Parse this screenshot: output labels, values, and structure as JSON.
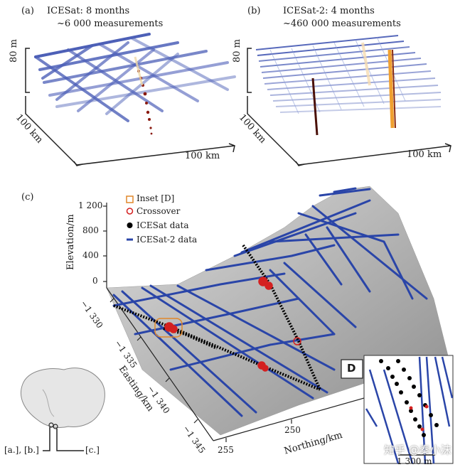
{
  "panel_a": {
    "label": "(a)",
    "title_line1": "ICESat: 8 months",
    "title_line2": "~6 000 measurements",
    "vertical_scale": "80 m",
    "depth_scale": "100 km",
    "width_scale": "100 km"
  },
  "panel_b": {
    "label": "(b)",
    "title_line1": "ICESat-2: 4 months",
    "title_line2": "~460 000 measurements",
    "vertical_scale": "80 m",
    "depth_scale": "100 km",
    "width_scale": "100 km"
  },
  "panel_c": {
    "label": "(c)",
    "legend": [
      {
        "label": "Inset [D]",
        "marker": "square-outline",
        "color": "#e0872a"
      },
      {
        "label": "Crossover",
        "marker": "circle-outline",
        "color": "#d42020"
      },
      {
        "label": "ICESat data",
        "marker": "dot",
        "color": "#000000"
      },
      {
        "label": "ICESat-2 data",
        "marker": "dash",
        "color": "#2a45a8"
      }
    ],
    "elevation_axis": {
      "label": "Elevation/m",
      "ticks": [
        "1 200",
        "800",
        "400",
        "0"
      ]
    },
    "easting_axis": {
      "label": "Easting/km",
      "ticks": [
        "−1 330",
        "−1 335",
        "−1 340",
        "−1 345"
      ]
    },
    "northing_axis": {
      "label": "Northing/km",
      "ticks": [
        "250",
        "255"
      ]
    },
    "inset": {
      "label": "D",
      "scale": "1 300 m"
    }
  },
  "locator_map": {
    "label_left": "[a.], [b.]",
    "label_right": "[c.]"
  },
  "watermark": "知乎 @秦小沫",
  "colors": {
    "icesat2_blue": "#2a45a8",
    "icesat_black": "#000000",
    "crossover_red": "#d42020",
    "inset_orange": "#e0872a",
    "terrain_gray": "#a8a8a8"
  }
}
